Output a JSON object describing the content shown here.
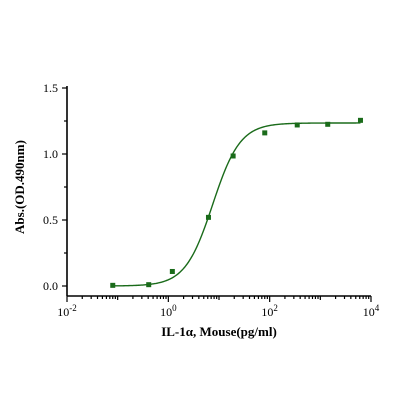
{
  "chart_data": {
    "type": "scatter",
    "xlabel": "IL-1α, Mouse(pg/ml)",
    "ylabel": "Abs.(OD.490nm)",
    "x_scale": "log10",
    "xlim": [
      0.01,
      10000
    ],
    "ylim": [
      -0.05,
      1.5
    ],
    "y_ticks": [
      {
        "value": 0.0,
        "label": "0.0"
      },
      {
        "value": 0.5,
        "label": "0.5"
      },
      {
        "value": 1.0,
        "label": "1.0"
      },
      {
        "value": 1.5,
        "label": "1.5"
      }
    ],
    "x_major_ticks": [
      {
        "value": 0.01,
        "base": "10",
        "exp": "-2"
      },
      {
        "value": 1,
        "base": "10",
        "exp": "0"
      },
      {
        "value": 100,
        "base": "10",
        "exp": "2"
      },
      {
        "value": 10000,
        "base": "10",
        "exp": "4"
      }
    ],
    "grid": false,
    "color": "#1a6b1a",
    "series": [
      {
        "marker": "square",
        "x": [
          0.08,
          0.41,
          1.2,
          6.2,
          19,
          80,
          350,
          1400,
          6200
        ],
        "y": [
          0.005,
          0.01,
          0.11,
          0.52,
          0.985,
          1.16,
          1.22,
          1.225,
          1.255
        ]
      }
    ],
    "fit_curve": {
      "model": "4PL",
      "bottom": 0.0,
      "top": 1.235,
      "ec50": 7.5,
      "hill": 1.6,
      "x_range": [
        0.08,
        6200
      ]
    }
  }
}
